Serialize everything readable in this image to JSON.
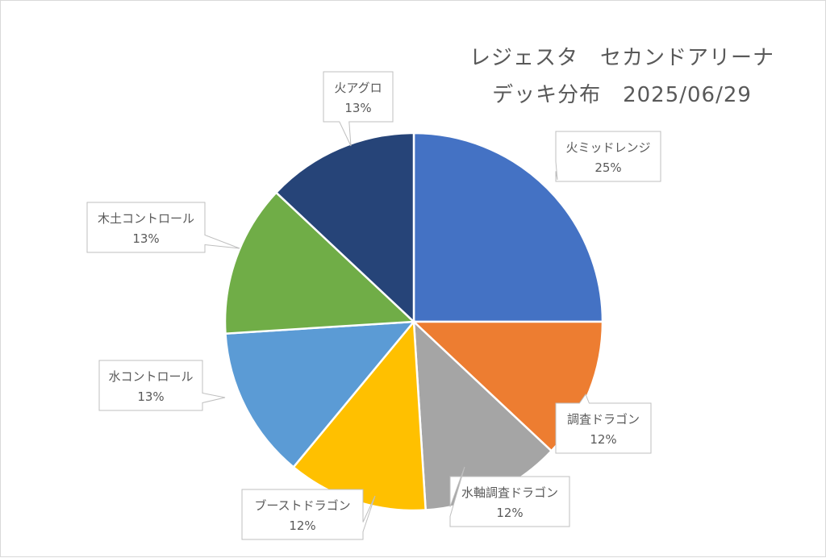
{
  "chart_data": {
    "type": "pie",
    "title_lines": [
      "レジェスタ　セカンドアリーナ",
      "デッキ分布　2025/06/29"
    ],
    "categories": [
      "火ミッドレンジ",
      "調査ドラゴン",
      "水軸調査ドラゴン",
      "ブーストドラゴン",
      "水コントロール",
      "木土コントロール",
      "火アグロ"
    ],
    "values": [
      25,
      12,
      12,
      12,
      13,
      13,
      13
    ],
    "data_labels": [
      "25%",
      "12%",
      "12%",
      "12%",
      "13%",
      "13%",
      "13%"
    ],
    "colors": [
      "#4472C4",
      "#ED7D31",
      "#A5A5A5",
      "#FFC000",
      "#5B9BD5",
      "#70AD47",
      "#264478"
    ],
    "legend": "none",
    "start_angle": "12 o'clock",
    "direction": "clockwise"
  }
}
